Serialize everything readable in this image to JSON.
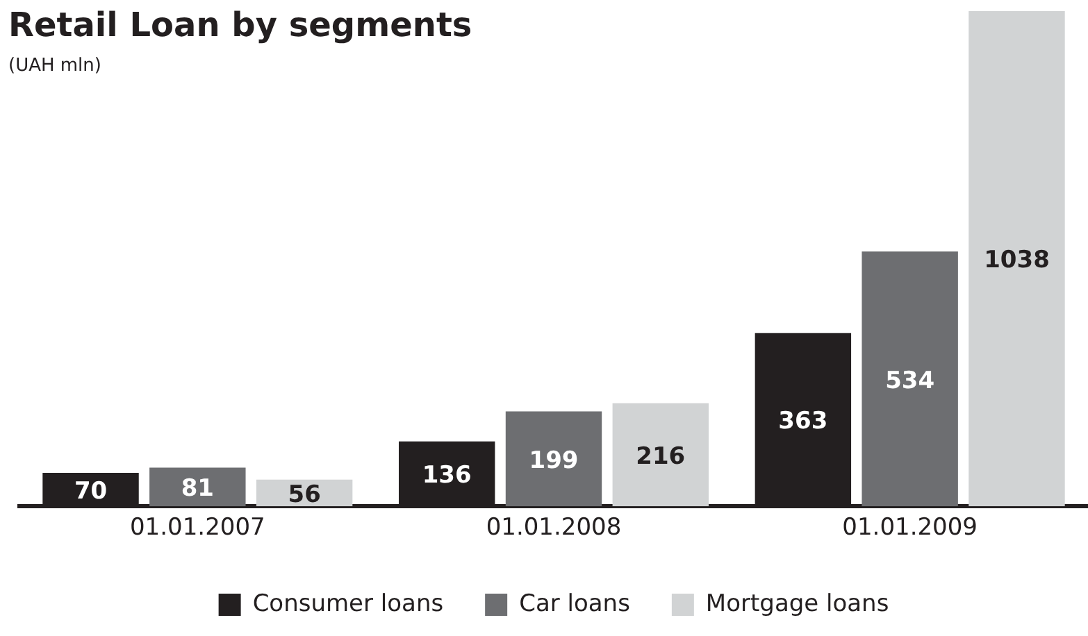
{
  "chart_data": {
    "type": "bar",
    "title": "Retail Loan by segments",
    "subtitle": "(UAH mln)",
    "categories": [
      "01.01.2007",
      "01.01.2008",
      "01.01.2009"
    ],
    "series": [
      {
        "name": "Consumer loans",
        "color": "#231f20",
        "values": [
          70,
          136,
          363
        ]
      },
      {
        "name": "Car loans",
        "color": "#6d6e71",
        "values": [
          81,
          199,
          534
        ]
      },
      {
        "name": "Mortgage loans",
        "color": "#d1d3d4",
        "values": [
          56,
          216,
          1038
        ]
      }
    ],
    "data_labels": true,
    "grid": false,
    "legend": "bottom"
  }
}
